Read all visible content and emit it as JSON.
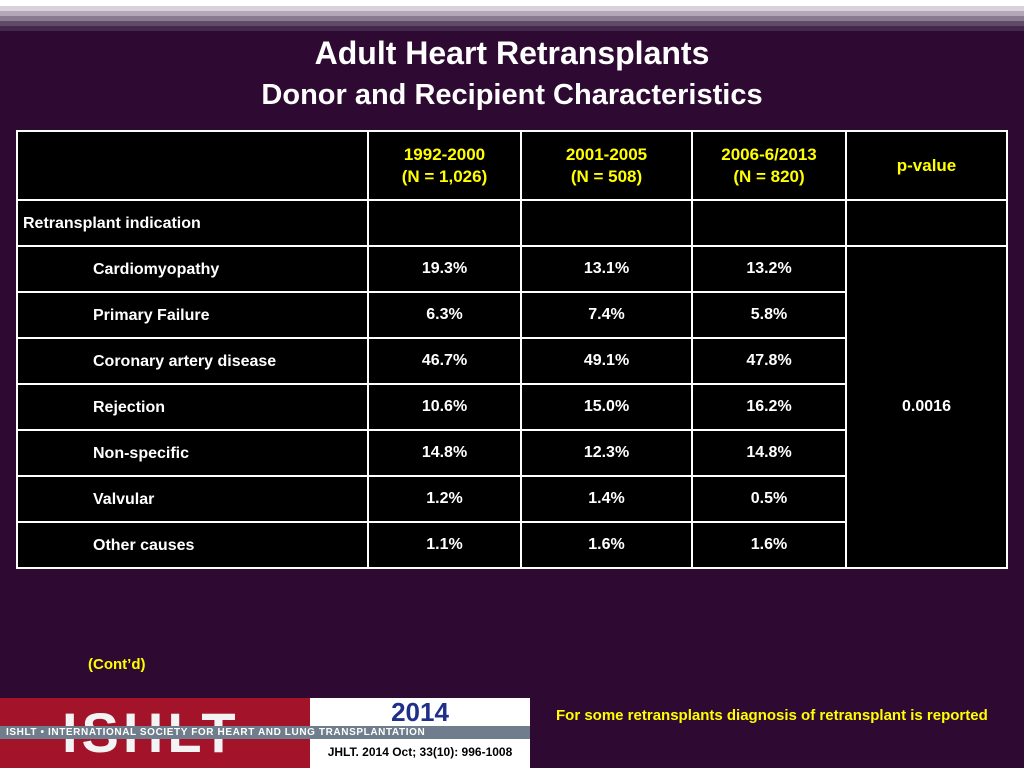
{
  "title": "Adult Heart Retransplants",
  "subtitle": "Donor and Recipient Characteristics",
  "table": {
    "headers": [
      {
        "line1": "1992-2000",
        "line2": "(N = 1,026)"
      },
      {
        "line1": "2001-2005",
        "line2": "(N = 508)"
      },
      {
        "line1": "2006-6/2013",
        "line2": "(N = 820)"
      }
    ],
    "pvalue_header": "p-value",
    "section_label": "Retransplant indication",
    "rows": [
      {
        "label": "Cardiomyopathy",
        "values": [
          "19.3%",
          "13.1%",
          "13.2%"
        ]
      },
      {
        "label": "Primary Failure",
        "values": [
          "6.3%",
          "7.4%",
          "5.8%"
        ]
      },
      {
        "label": "Coronary artery disease",
        "values": [
          "46.7%",
          "49.1%",
          "47.8%"
        ]
      },
      {
        "label": "Rejection",
        "values": [
          "10.6%",
          "15.0%",
          "16.2%"
        ]
      },
      {
        "label": "Non-specific",
        "values": [
          "14.8%",
          "12.3%",
          "14.8%"
        ]
      },
      {
        "label": "Valvular",
        "values": [
          "1.2%",
          "1.4%",
          "0.5%"
        ]
      },
      {
        "label": "Other causes",
        "values": [
          "1.1%",
          "1.6%",
          "1.6%"
        ]
      }
    ],
    "pvalue": "0.0016"
  },
  "contd": "(Cont’d)",
  "footnote": "For some retransplants diagnosis of retransplant is reported",
  "logo": {
    "letters": "ISHLT",
    "band": "ISHLT • INTERNATIONAL SOCIETY FOR HEART AND LUNG TRANSPLANTATION",
    "year": "2014",
    "citation": "JHLT. 2014 Oct; 33(10): 996-1008"
  },
  "colors": {
    "background": "#2e0a33",
    "table_bg": "#000000",
    "header_text": "#ffff00",
    "logo_red": "#a3142a",
    "year_blue": "#1f2f8a"
  }
}
